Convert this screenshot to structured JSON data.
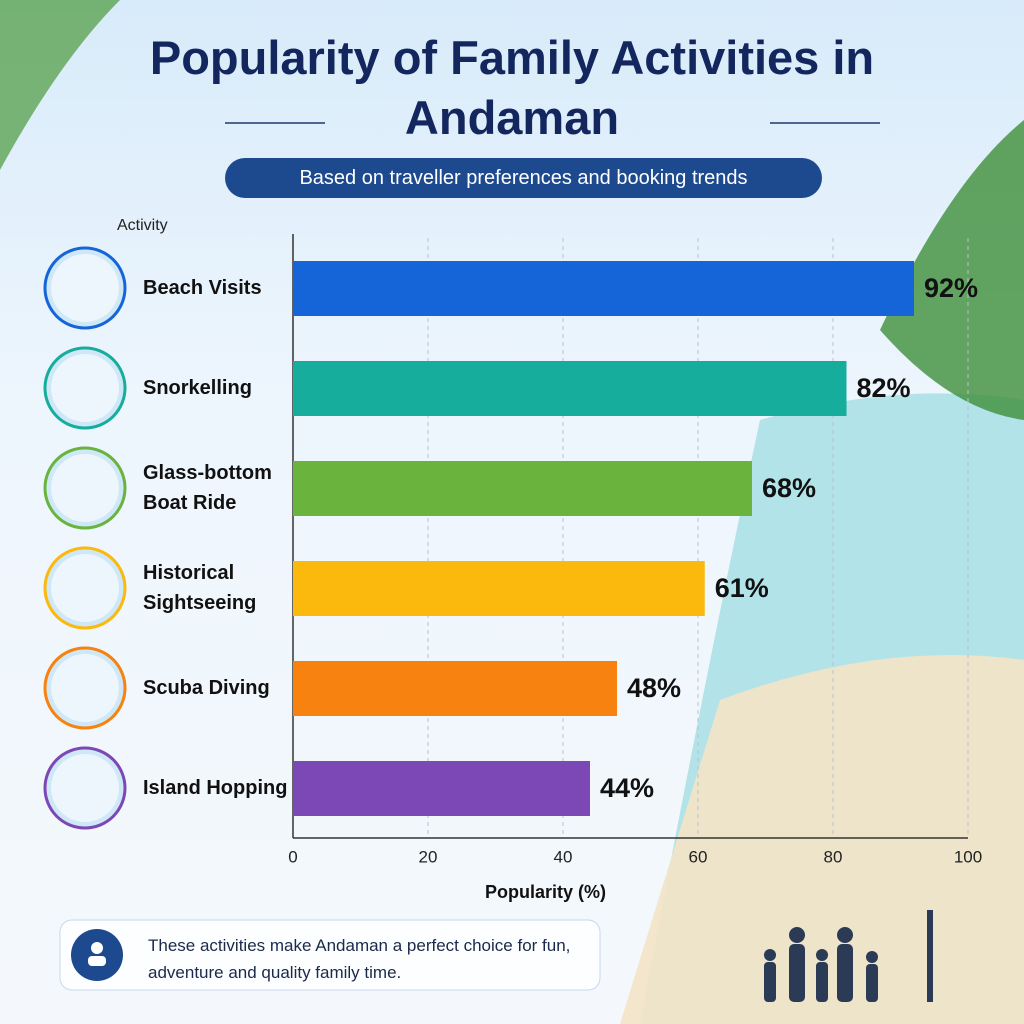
{
  "chart_data": {
    "type": "bar",
    "orientation": "horizontal",
    "title": "Popularity of Family Activities in Andaman",
    "subtitle": "Based on traveller preferences and booking trends",
    "y_label": "Activity",
    "x_label": "Popularity (%)",
    "categories": [
      "Beach Visits",
      "Snorkelling",
      "Glass-bottom Boat Ride",
      "Historical Sightseeing",
      "Scuba Diving",
      "Island Hopping"
    ],
    "values": [
      92,
      82,
      68,
      61,
      48,
      44
    ],
    "value_labels": [
      "92%",
      "82%",
      "68%",
      "61%",
      "48%",
      "44%"
    ],
    "colors": [
      "#1565d8",
      "#17ad9c",
      "#6ab43e",
      "#fbb80d",
      "#f7820f",
      "#7b48b5"
    ],
    "xlim": [
      0,
      100
    ],
    "xticks": [
      0,
      20,
      40,
      60,
      80,
      100
    ],
    "grid": true,
    "note": "These activities make Andaman a perfect choice for fun, adventure and quality family time."
  }
}
